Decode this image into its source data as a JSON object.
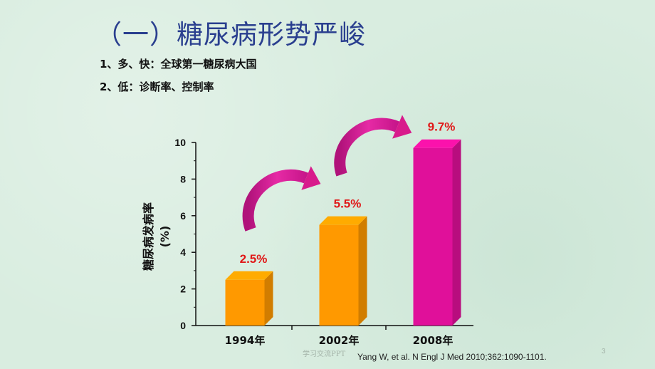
{
  "slide": {
    "title": "（一）糖尿病形势严峻",
    "bullets": [
      "1、多、快：全球第一糖尿病大国",
      "2、低：诊断率、控制率"
    ],
    "footer_center": "学习交流PPT",
    "citation": "Yang W, et al. N Engl J Med 2010;362:1090-1101.",
    "page_number": "3"
  },
  "colors": {
    "title": "#2a3f8f",
    "bar_orange": "#ff9900",
    "bar_magenta": "#e0109a",
    "value_label": "#e01818",
    "arrow": "#d81b8c"
  },
  "chart_data": {
    "type": "bar",
    "categories": [
      "1994年",
      "2002年",
      "2008年"
    ],
    "values": [
      2.5,
      5.5,
      9.7
    ],
    "value_labels": [
      "2.5%",
      "5.5%",
      "9.7%"
    ],
    "bar_colors": [
      "#ff9900",
      "#ff9900",
      "#e0109a"
    ],
    "ylabel_line1": "糖尿病发病率",
    "ylabel_line2": "(%)",
    "ylim": [
      0,
      10
    ],
    "yticks": [
      "0",
      "2",
      "4",
      "6",
      "8",
      "10"
    ],
    "ytick_values": [
      0,
      2,
      4,
      6,
      8,
      10
    ],
    "style": "3d-bars",
    "annotations": [
      "curved arrow 1994→2002",
      "curved arrow 2002→2008"
    ]
  }
}
